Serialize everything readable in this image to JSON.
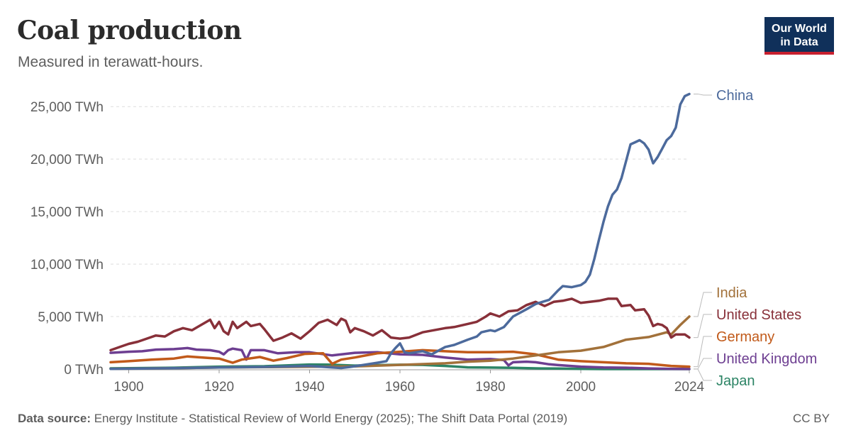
{
  "header": {
    "title": "Coal production",
    "subtitle": "Measured in terawatt-hours.",
    "logo_line1": "Our World",
    "logo_line2": "in Data"
  },
  "footer": {
    "source_label": "Data source:",
    "source_text": "Energy Institute - Statistical Review of World Energy (2025); The Shift Data Portal (2019)",
    "license": "CC BY"
  },
  "chart_data": {
    "type": "line",
    "title": "Coal production",
    "subtitle": "Measured in terawatt-hours.",
    "xlim": [
      1896,
      2024
    ],
    "ylim": [
      0,
      26500
    ],
    "grid": true,
    "legend": "right (labels at line ends)",
    "x_ticks": [
      {
        "value": 1900,
        "label": "1900"
      },
      {
        "value": 1920,
        "label": "1920"
      },
      {
        "value": 1940,
        "label": "1940"
      },
      {
        "value": 1960,
        "label": "1960"
      },
      {
        "value": 1980,
        "label": "1980"
      },
      {
        "value": 2000,
        "label": "2000"
      },
      {
        "value": 2024,
        "label": "2024"
      }
    ],
    "y_ticks": [
      {
        "value": 0,
        "label": "0 TWh"
      },
      {
        "value": 5000,
        "label": "5,000 TWh"
      },
      {
        "value": 10000,
        "label": "10,000 TWh"
      },
      {
        "value": 15000,
        "label": "15,000 TWh"
      },
      {
        "value": 20000,
        "label": "20,000 TWh"
      },
      {
        "value": 25000,
        "label": "25,000 TWh"
      }
    ],
    "series": [
      {
        "name": "Japan",
        "color": "#2c8465",
        "points": [
          [
            1896,
            70
          ],
          [
            1910,
            130
          ],
          [
            1920,
            230
          ],
          [
            1930,
            270
          ],
          [
            1940,
            430
          ],
          [
            1944,
            420
          ],
          [
            1950,
            330
          ],
          [
            1960,
            410
          ],
          [
            1965,
            400
          ],
          [
            1970,
            300
          ],
          [
            1975,
            160
          ],
          [
            1980,
            140
          ],
          [
            1985,
            120
          ],
          [
            1990,
            70
          ],
          [
            1995,
            50
          ],
          [
            2000,
            20
          ],
          [
            2005,
            0
          ],
          [
            2024,
            0
          ]
        ]
      },
      {
        "name": "United Kingdom",
        "color": "#6d3e91",
        "points": [
          [
            1896,
            1550
          ],
          [
            1900,
            1650
          ],
          [
            1903,
            1700
          ],
          [
            1906,
            1850
          ],
          [
            1910,
            1900
          ],
          [
            1913,
            2000
          ],
          [
            1915,
            1850
          ],
          [
            1918,
            1800
          ],
          [
            1920,
            1650
          ],
          [
            1921,
            1400
          ],
          [
            1922,
            1800
          ],
          [
            1923,
            1950
          ],
          [
            1925,
            1800
          ],
          [
            1926,
            900
          ],
          [
            1927,
            1800
          ],
          [
            1930,
            1800
          ],
          [
            1933,
            1500
          ],
          [
            1937,
            1600
          ],
          [
            1940,
            1600
          ],
          [
            1945,
            1300
          ],
          [
            1950,
            1550
          ],
          [
            1955,
            1600
          ],
          [
            1960,
            1400
          ],
          [
            1965,
            1350
          ],
          [
            1970,
            1100
          ],
          [
            1975,
            900
          ],
          [
            1980,
            950
          ],
          [
            1983,
            850
          ],
          [
            1984,
            350
          ],
          [
            1985,
            650
          ],
          [
            1988,
            700
          ],
          [
            1990,
            650
          ],
          [
            1993,
            450
          ],
          [
            1995,
            380
          ],
          [
            2000,
            230
          ],
          [
            2005,
            150
          ],
          [
            2010,
            130
          ],
          [
            2015,
            60
          ],
          [
            2020,
            15
          ],
          [
            2024,
            5
          ]
        ]
      },
      {
        "name": "Germany",
        "color": "#c15a1a",
        "points": [
          [
            1896,
            650
          ],
          [
            1900,
            750
          ],
          [
            1905,
            900
          ],
          [
            1910,
            1000
          ],
          [
            1913,
            1200
          ],
          [
            1918,
            1050
          ],
          [
            1920,
            1000
          ],
          [
            1923,
            600
          ],
          [
            1925,
            900
          ],
          [
            1929,
            1150
          ],
          [
            1932,
            800
          ],
          [
            1935,
            1050
          ],
          [
            1939,
            1450
          ],
          [
            1943,
            1500
          ],
          [
            1945,
            500
          ],
          [
            1947,
            900
          ],
          [
            1950,
            1100
          ],
          [
            1955,
            1500
          ],
          [
            1960,
            1650
          ],
          [
            1965,
            1800
          ],
          [
            1970,
            1700
          ],
          [
            1975,
            1600
          ],
          [
            1980,
            1600
          ],
          [
            1985,
            1650
          ],
          [
            1990,
            1400
          ],
          [
            1995,
            900
          ],
          [
            2000,
            750
          ],
          [
            2005,
            650
          ],
          [
            2010,
            550
          ],
          [
            2015,
            500
          ],
          [
            2020,
            300
          ],
          [
            2024,
            230
          ]
        ]
      },
      {
        "name": "India",
        "color": "#a2713a",
        "points": [
          [
            1896,
            30
          ],
          [
            1910,
            80
          ],
          [
            1920,
            150
          ],
          [
            1930,
            180
          ],
          [
            1940,
            220
          ],
          [
            1950,
            260
          ],
          [
            1960,
            400
          ],
          [
            1970,
            550
          ],
          [
            1975,
            700
          ],
          [
            1980,
            800
          ],
          [
            1985,
            1000
          ],
          [
            1990,
            1300
          ],
          [
            1995,
            1600
          ],
          [
            2000,
            1750
          ],
          [
            2005,
            2100
          ],
          [
            2010,
            2800
          ],
          [
            2015,
            3050
          ],
          [
            2019,
            3500
          ],
          [
            2020,
            3300
          ],
          [
            2022,
            4200
          ],
          [
            2024,
            5000
          ]
        ]
      },
      {
        "name": "United States",
        "color": "#883039",
        "points": [
          [
            1896,
            1800
          ],
          [
            1898,
            2100
          ],
          [
            1900,
            2400
          ],
          [
            1902,
            2600
          ],
          [
            1904,
            2900
          ],
          [
            1906,
            3200
          ],
          [
            1908,
            3100
          ],
          [
            1910,
            3600
          ],
          [
            1912,
            3900
          ],
          [
            1914,
            3700
          ],
          [
            1916,
            4200
          ],
          [
            1918,
            4700
          ],
          [
            1919,
            3900
          ],
          [
            1920,
            4500
          ],
          [
            1921,
            3600
          ],
          [
            1922,
            3300
          ],
          [
            1923,
            4500
          ],
          [
            1924,
            3900
          ],
          [
            1926,
            4500
          ],
          [
            1927,
            4100
          ],
          [
            1929,
            4300
          ],
          [
            1930,
            3800
          ],
          [
            1932,
            2700
          ],
          [
            1934,
            3000
          ],
          [
            1936,
            3400
          ],
          [
            1938,
            2900
          ],
          [
            1940,
            3600
          ],
          [
            1942,
            4400
          ],
          [
            1944,
            4700
          ],
          [
            1946,
            4200
          ],
          [
            1947,
            4800
          ],
          [
            1948,
            4600
          ],
          [
            1949,
            3500
          ],
          [
            1950,
            3900
          ],
          [
            1952,
            3600
          ],
          [
            1954,
            3200
          ],
          [
            1956,
            3700
          ],
          [
            1958,
            3000
          ],
          [
            1960,
            2900
          ],
          [
            1962,
            3000
          ],
          [
            1965,
            3500
          ],
          [
            1970,
            3900
          ],
          [
            1972,
            4000
          ],
          [
            1975,
            4300
          ],
          [
            1977,
            4500
          ],
          [
            1979,
            5000
          ],
          [
            1980,
            5300
          ],
          [
            1982,
            5000
          ],
          [
            1984,
            5500
          ],
          [
            1986,
            5600
          ],
          [
            1988,
            6100
          ],
          [
            1990,
            6400
          ],
          [
            1992,
            6000
          ],
          [
            1994,
            6400
          ],
          [
            1996,
            6500
          ],
          [
            1998,
            6700
          ],
          [
            2000,
            6300
          ],
          [
            2002,
            6400
          ],
          [
            2004,
            6500
          ],
          [
            2006,
            6700
          ],
          [
            2008,
            6700
          ],
          [
            2009,
            6000
          ],
          [
            2011,
            6100
          ],
          [
            2012,
            5600
          ],
          [
            2014,
            5700
          ],
          [
            2015,
            5100
          ],
          [
            2016,
            4100
          ],
          [
            2017,
            4300
          ],
          [
            2018,
            4200
          ],
          [
            2019,
            3900
          ],
          [
            2020,
            3000
          ],
          [
            2021,
            3300
          ],
          [
            2023,
            3300
          ],
          [
            2024,
            3000
          ]
        ]
      },
      {
        "name": "China",
        "color": "#4c6a9c",
        "points": [
          [
            1896,
            20
          ],
          [
            1910,
            80
          ],
          [
            1920,
            150
          ],
          [
            1930,
            200
          ],
          [
            1940,
            300
          ],
          [
            1945,
            150
          ],
          [
            1947,
            100
          ],
          [
            1949,
            200
          ],
          [
            1952,
            400
          ],
          [
            1955,
            600
          ],
          [
            1957,
            750
          ],
          [
            1958,
            1500
          ],
          [
            1959,
            2000
          ],
          [
            1960,
            2450
          ],
          [
            1961,
            1600
          ],
          [
            1962,
            1500
          ],
          [
            1965,
            1700
          ],
          [
            1967,
            1400
          ],
          [
            1970,
            2100
          ],
          [
            1972,
            2300
          ],
          [
            1975,
            2800
          ],
          [
            1977,
            3100
          ],
          [
            1978,
            3500
          ],
          [
            1979,
            3600
          ],
          [
            1980,
            3700
          ],
          [
            1981,
            3600
          ],
          [
            1983,
            4000
          ],
          [
            1985,
            5000
          ],
          [
            1988,
            5700
          ],
          [
            1990,
            6200
          ],
          [
            1993,
            6600
          ],
          [
            1995,
            7500
          ],
          [
            1996,
            7900
          ],
          [
            1998,
            7800
          ],
          [
            2000,
            8000
          ],
          [
            2001,
            8300
          ],
          [
            2002,
            9000
          ],
          [
            2003,
            10500
          ],
          [
            2004,
            12300
          ],
          [
            2005,
            14000
          ],
          [
            2006,
            15500
          ],
          [
            2007,
            16600
          ],
          [
            2008,
            17100
          ],
          [
            2009,
            18200
          ],
          [
            2010,
            19800
          ],
          [
            2011,
            21400
          ],
          [
            2012,
            21600
          ],
          [
            2013,
            21800
          ],
          [
            2014,
            21500
          ],
          [
            2015,
            20900
          ],
          [
            2016,
            19600
          ],
          [
            2017,
            20200
          ],
          [
            2018,
            21000
          ],
          [
            2019,
            21800
          ],
          [
            2020,
            22200
          ],
          [
            2021,
            23000
          ],
          [
            2022,
            25200
          ],
          [
            2023,
            26000
          ],
          [
            2024,
            26200
          ]
        ]
      }
    ]
  }
}
